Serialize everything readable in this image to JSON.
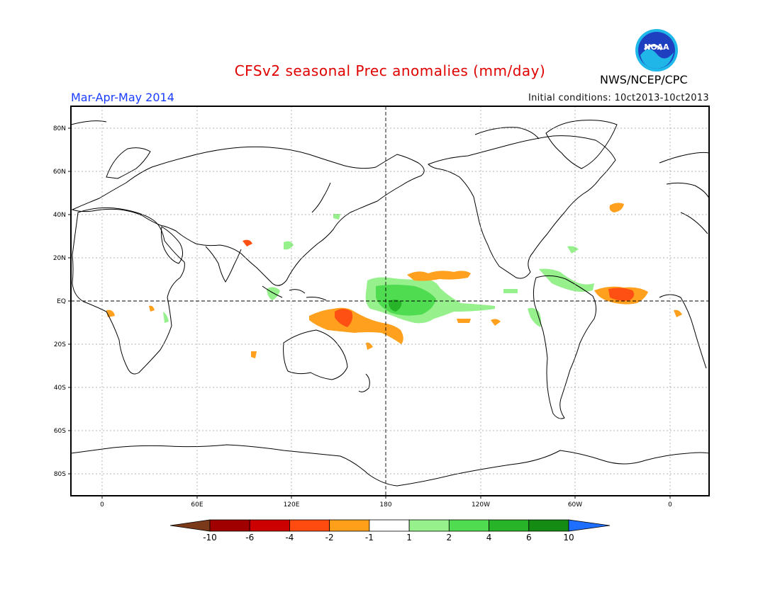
{
  "title": "CFSv2 seasonal Prec anomalies (mm/day)",
  "season": "Mar-Apr-May 2014",
  "initial_conditions": "Initial conditions: 10ct2013-10ct2013",
  "agency": "NWS/NCEP/CPC",
  "logo_text": "NOAA",
  "lat_labels": [
    "80N",
    "60N",
    "40N",
    "20N",
    "EQ",
    "20S",
    "40S",
    "60S",
    "80S"
  ],
  "lon_labels": [
    "0",
    "60E",
    "120E",
    "180",
    "120W",
    "60W",
    "0"
  ],
  "colorbar": {
    "labels": [
      "-10",
      "-6",
      "-4",
      "-2",
      "-1",
      "1",
      "2",
      "4",
      "6",
      "10"
    ],
    "colors": [
      "#7a3a1a",
      "#a00000",
      "#cc0000",
      "#ff4a10",
      "#ff9f1a",
      "#ffffff",
      "#96f08c",
      "#50dc50",
      "#28b428",
      "#148c14",
      "#1e6eff"
    ]
  },
  "colors": {
    "title": "#e00000",
    "season": "#1a3cff",
    "dry_light": "#ffa01e",
    "dry_medium": "#ff5014",
    "wet_light": "#96f08c",
    "wet_medium": "#50dc50",
    "wet_strong": "#28b428"
  }
}
